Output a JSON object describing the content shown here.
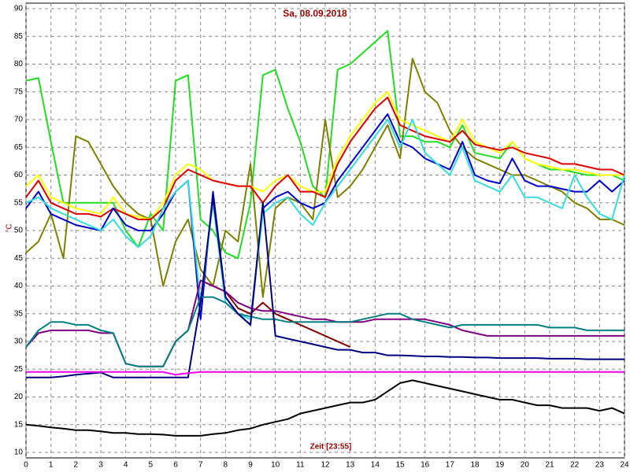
{
  "chart_data": {
    "type": "line",
    "title": "Sa, 08.09.2018",
    "y_label": "°C",
    "x_label": "Zeit [23:55]",
    "x": [
      0,
      0.5,
      1,
      1.5,
      2,
      2.5,
      3,
      3.5,
      4,
      4.5,
      5,
      5.5,
      6,
      6.5,
      7,
      7.5,
      8,
      8.5,
      9,
      9.5,
      10,
      10.5,
      11,
      11.5,
      12,
      12.5,
      13,
      13.5,
      14,
      14.5,
      15,
      15.5,
      16,
      16.5,
      17,
      17.5,
      18,
      18.5,
      19,
      19.5,
      20,
      20.5,
      21,
      21.5,
      22,
      22.5,
      23,
      23.5,
      24
    ],
    "xlim": [
      0,
      24
    ],
    "xticks": [
      0,
      1,
      2,
      3,
      4,
      5,
      6,
      7,
      8,
      9,
      10,
      11,
      12,
      13,
      14,
      15,
      16,
      17,
      18,
      19,
      20,
      21,
      22,
      23,
      24
    ],
    "ylim": [
      10,
      90
    ],
    "yticks": [
      10,
      15,
      20,
      25,
      30,
      35,
      40,
      45,
      50,
      55,
      60,
      65,
      70,
      75,
      80,
      85,
      90
    ],
    "grid": true,
    "series": [
      {
        "color": "#22dd22",
        "values": [
          77,
          77.5,
          66,
          55,
          55,
          55,
          55,
          55,
          50,
          47,
          53,
          50,
          77,
          78,
          52,
          50,
          46,
          45,
          55,
          78,
          79,
          72,
          66,
          58,
          56,
          79,
          80,
          82,
          84,
          86,
          67,
          67,
          66,
          66,
          65,
          69,
          64,
          63.5,
          63,
          66,
          63,
          62,
          61,
          61,
          60.5,
          60,
          60,
          60,
          59
        ]
      },
      {
        "color": "#808000",
        "values": [
          46,
          48,
          53,
          45,
          67,
          66,
          62,
          58,
          55,
          53,
          52,
          40,
          48,
          52,
          43,
          40,
          50,
          48,
          62,
          38,
          54,
          56,
          55,
          52,
          70,
          56,
          58,
          61,
          65,
          69,
          63,
          81,
          75,
          73,
          68,
          65,
          63,
          62,
          61,
          60,
          60,
          59,
          58,
          57,
          55,
          54,
          52,
          52,
          51
        ]
      },
      {
        "color": "#ffff00",
        "values": [
          58,
          60,
          56,
          55,
          54,
          53.5,
          53,
          56,
          53,
          52.5,
          52,
          55,
          60,
          62,
          61,
          59,
          58.5,
          58,
          58,
          57,
          59,
          60,
          58,
          57,
          57,
          63,
          67,
          70,
          73,
          75,
          70,
          69,
          68,
          67,
          66,
          70,
          66,
          65,
          64,
          66,
          63,
          62,
          61.5,
          61,
          61,
          60.5,
          60,
          60,
          60
        ]
      },
      {
        "color": "#dd0000",
        "values": [
          56,
          59,
          55,
          54,
          53,
          53,
          52.5,
          54,
          53,
          52,
          52,
          54,
          59,
          61,
          60,
          59,
          58.5,
          58,
          58,
          55,
          58,
          60,
          57,
          57,
          56,
          62,
          66,
          69,
          72,
          74,
          69,
          68,
          67,
          66.5,
          66,
          68,
          65.5,
          65,
          64.5,
          65,
          64,
          63.5,
          63,
          62,
          62,
          61.5,
          61,
          61,
          60
        ]
      },
      {
        "color": "#0000cc",
        "values": [
          54,
          57,
          53,
          52,
          51,
          50.5,
          50,
          54,
          51,
          50,
          50,
          53,
          57,
          59,
          34,
          57,
          38,
          35,
          33,
          54,
          56,
          57,
          55,
          54,
          55,
          59,
          62,
          65,
          68,
          71,
          66,
          65,
          63,
          62,
          61,
          66,
          60,
          59,
          58.5,
          63,
          59,
          58,
          58,
          57.5,
          57,
          57,
          59,
          57,
          59
        ]
      },
      {
        "color": "#33dddd",
        "values": [
          55,
          56,
          54,
          53,
          52,
          51,
          50,
          52,
          49,
          47,
          49,
          54,
          57,
          59,
          37,
          55,
          37,
          35,
          34,
          53,
          55,
          56,
          53,
          51,
          55,
          58,
          61,
          64,
          67,
          70,
          65,
          70,
          64,
          62,
          60,
          65,
          59,
          58,
          57,
          60,
          56,
          56,
          55,
          54,
          60,
          56,
          53,
          52,
          60
        ]
      },
      {
        "color": "#800000",
        "values": [
          null,
          null,
          null,
          null,
          null,
          null,
          null,
          null,
          null,
          null,
          null,
          null,
          null,
          null,
          41,
          40,
          39,
          36,
          35,
          37,
          35,
          34,
          33,
          32,
          31,
          30,
          29,
          null,
          null,
          null,
          null,
          null,
          null,
          null,
          null,
          null,
          null,
          null,
          null,
          null,
          null,
          null,
          null,
          null,
          null,
          null,
          null,
          null,
          null
        ]
      },
      {
        "color": "#800080",
        "values": [
          29,
          31.5,
          32,
          32,
          32,
          32,
          31.5,
          31.5,
          26,
          25.5,
          25.5,
          25.5,
          30,
          32,
          41,
          40,
          39,
          37,
          36,
          35.5,
          35.5,
          35,
          34.5,
          34,
          34,
          33.5,
          33.5,
          33.5,
          34,
          34,
          34,
          34,
          34,
          33.5,
          33,
          32,
          31.5,
          31,
          31,
          31,
          31,
          31,
          31,
          31,
          31,
          31,
          31,
          31,
          31
        ]
      },
      {
        "color": "#008080",
        "values": [
          29,
          32,
          33.5,
          33.5,
          33,
          33,
          32,
          31.5,
          26,
          25.5,
          25.5,
          25.5,
          30,
          32,
          38,
          38,
          37,
          35,
          34.5,
          34,
          34,
          33.5,
          33.5,
          33.5,
          33.5,
          33.5,
          33.5,
          34,
          34.5,
          35,
          35,
          34,
          33.5,
          33,
          32.5,
          33,
          33,
          33,
          33,
          33,
          33,
          33,
          32.5,
          32.5,
          32.5,
          32,
          32,
          32,
          32
        ]
      },
      {
        "color": "#000080",
        "values": [
          23.5,
          23.5,
          23.5,
          23.7,
          24,
          24.2,
          24.4,
          23.5,
          23.5,
          23.5,
          23.5,
          23.5,
          23.5,
          23.5,
          37,
          56,
          38,
          35,
          33,
          55,
          31,
          30.5,
          30,
          29.5,
          29,
          28.5,
          28.5,
          28,
          28,
          27.5,
          27.5,
          27.4,
          27.3,
          27.3,
          27.2,
          27.2,
          27.1,
          27.1,
          27,
          27,
          27,
          27,
          26.9,
          26.9,
          26.9,
          26.8,
          26.8,
          26.8,
          26.8
        ]
      },
      {
        "color": "#ee00ee",
        "values": [
          24.5,
          24.5,
          24.5,
          24.5,
          24.5,
          24.5,
          24.5,
          24.5,
          24.5,
          24.5,
          24.5,
          24.5,
          24,
          24.3,
          24.5,
          24.5,
          24.5,
          24.5,
          24.5,
          24.5,
          24.5,
          24.5,
          24.5,
          24.5,
          24.5,
          24.5,
          24.5,
          24.5,
          24.5,
          24.5,
          24.5,
          24.5,
          24.5,
          24.5,
          24.5,
          24.5,
          24.5,
          24.5,
          24.5,
          24.5,
          24.5,
          24.5,
          24.5,
          24.5,
          24.5,
          24.5,
          24.5,
          24.5,
          24.5
        ]
      },
      {
        "color": "#000000",
        "values": [
          15,
          14.8,
          14.5,
          14.3,
          14,
          14,
          13.8,
          13.5,
          13.5,
          13.3,
          13.3,
          13.2,
          13,
          13,
          13,
          13.3,
          13.5,
          14,
          14.3,
          15,
          15.5,
          16,
          17,
          17.5,
          18,
          18.5,
          19,
          19,
          19.5,
          21,
          22.5,
          23,
          22.5,
          22,
          21.5,
          21,
          20.5,
          20,
          19.5,
          19.5,
          19,
          18.5,
          18.5,
          18,
          18,
          18,
          17.5,
          18,
          17
        ]
      }
    ]
  }
}
